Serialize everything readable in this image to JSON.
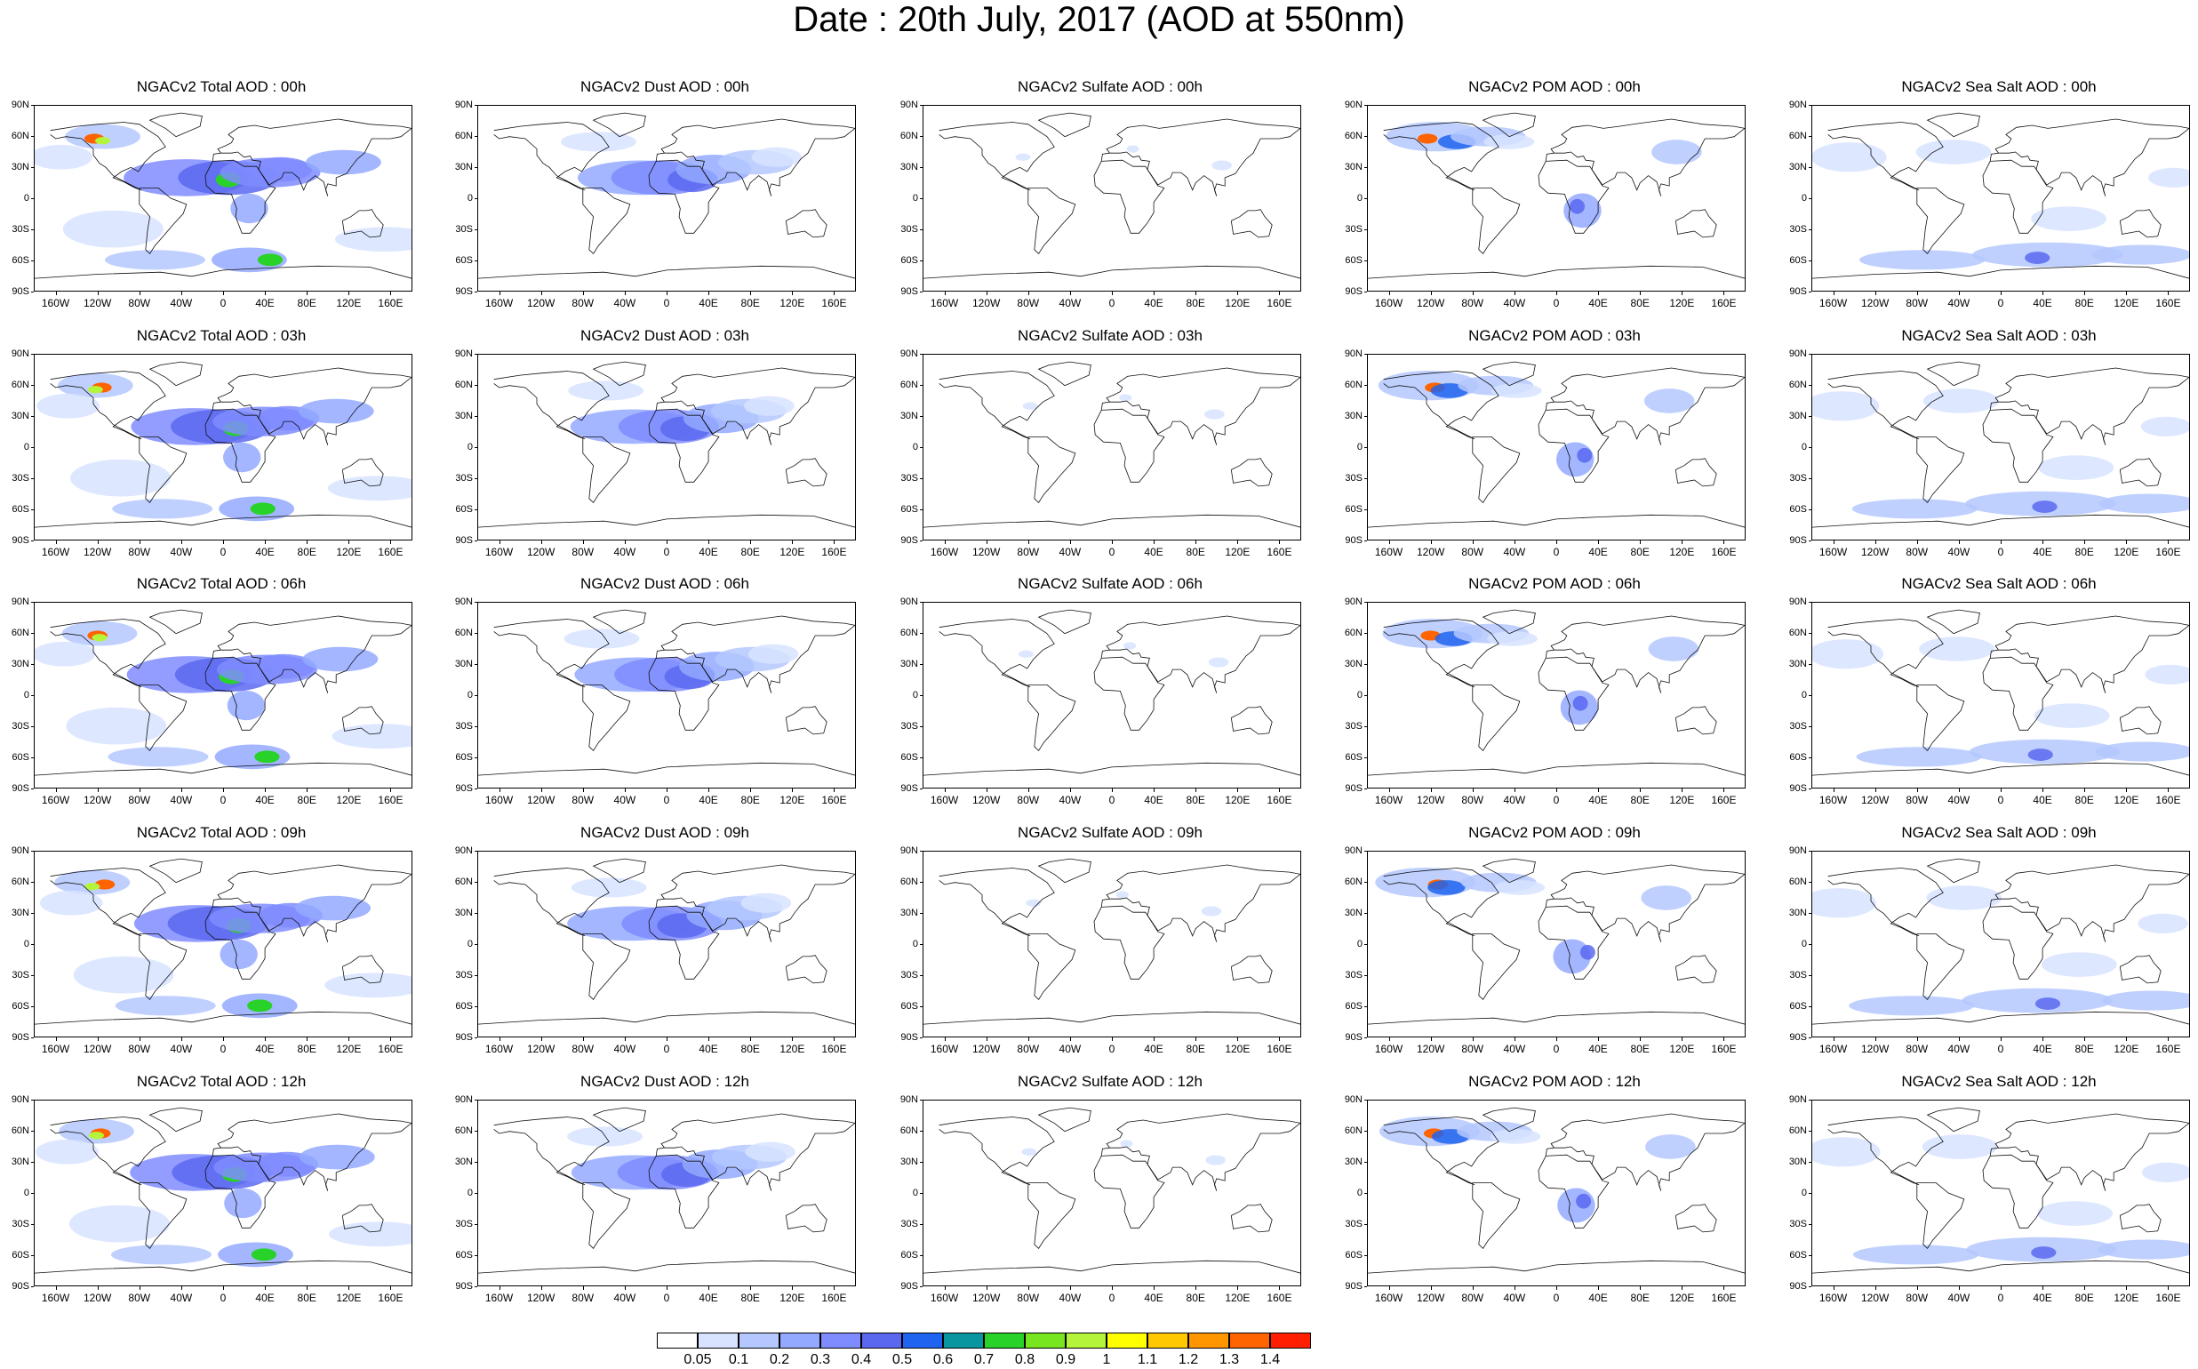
{
  "title": "Date : 20th July, 2017 (AOD at 550nm)",
  "lat_labels": [
    "90N",
    "60N",
    "30N",
    "0",
    "30S",
    "60S",
    "90S"
  ],
  "lon_labels": [
    "160W",
    "120W",
    "80W",
    "40W",
    "0",
    "40E",
    "80E",
    "120E",
    "160E"
  ],
  "panels": [
    [
      "NGACv2 Total AOD : 00h",
      "NGACv2 Dust AOD : 00h",
      "NGACv2 Sulfate AOD : 00h",
      "NGACv2 POM AOD : 00h",
      "NGACv2 Sea Salt AOD : 00h"
    ],
    [
      "NGACv2 Total AOD : 03h",
      "NGACv2 Dust AOD : 03h",
      "NGACv2 Sulfate AOD : 03h",
      "NGACv2 POM AOD : 03h",
      "NGACv2 Sea Salt AOD : 03h"
    ],
    [
      "NGACv2 Total AOD : 06h",
      "NGACv2 Dust AOD : 06h",
      "NGACv2 Sulfate AOD : 06h",
      "NGACv2 POM AOD : 06h",
      "NGACv2 Sea Salt AOD : 06h"
    ],
    [
      "NGACv2 Total AOD : 09h",
      "NGACv2 Dust AOD : 09h",
      "NGACv2 Sulfate AOD : 09h",
      "NGACv2 POM AOD : 09h",
      "NGACv2 Sea Salt  AOD : 09h"
    ],
    [
      "NGACv2 Total AOD :  12h",
      "NGACv2 Dust AOD : 12h",
      "NGACv2 Sulfate AOD : 12h",
      "NGACv2 POM  AOD : 12h",
      "NGACv2 Sea Salt  AOD : 12h"
    ]
  ],
  "colorbar": {
    "labels": [
      "0.05",
      "0.1",
      "0.2",
      "0.3",
      "0.4",
      "0.5",
      "0.6",
      "0.7",
      "0.8",
      "0.9",
      "1",
      "1.1",
      "1.2",
      "1.3",
      "1.4"
    ],
    "colors": [
      "#ffffff",
      "#d7e3ff",
      "#b4c8ff",
      "#93a9ff",
      "#7f8cff",
      "#5a68f0",
      "#1e64f0",
      "#0a96a0",
      "#28d228",
      "#78e61e",
      "#b4f53c",
      "#ffff00",
      "#ffc800",
      "#ff9600",
      "#ff6400",
      "#ff1e00"
    ]
  }
}
